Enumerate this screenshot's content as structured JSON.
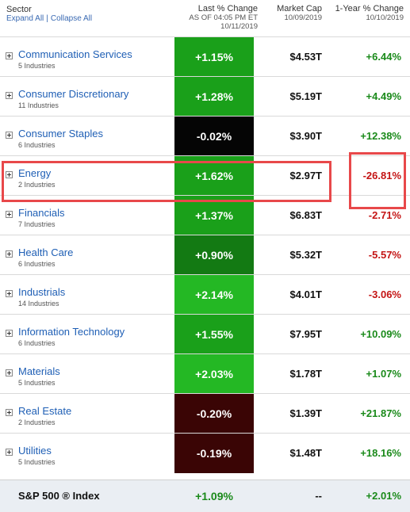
{
  "header": {
    "sector_title": "Sector",
    "expand_all": "Expand All",
    "separator": "|",
    "collapse_all": "Collapse All",
    "last_change_title": "Last % Change",
    "last_change_asof": "AS OF 04:05 PM ET",
    "last_change_date": "10/11/2019",
    "market_cap_title": "Market Cap",
    "market_cap_date": "10/09/2019",
    "year_change_title": "1-Year % Change",
    "year_change_date": "10/10/2019"
  },
  "rows": [
    {
      "name": "Communication Services",
      "industries": "5 Industries",
      "change": "+1.15%",
      "change_color": "#1aa01a",
      "mcap": "$4.53T",
      "year": "+6.44%"
    },
    {
      "name": "Consumer Discretionary",
      "industries": "11 Industries",
      "change": "+1.28%",
      "change_color": "#1aa01a",
      "mcap": "$5.19T",
      "year": "+4.49%"
    },
    {
      "name": "Consumer Staples",
      "industries": "6 Industries",
      "change": "-0.02%",
      "change_color": "#050505",
      "mcap": "$3.90T",
      "year": "+12.38%"
    },
    {
      "name": "Energy",
      "industries": "2 Industries",
      "change": "+1.62%",
      "change_color": "#1aa01a",
      "mcap": "$2.97T",
      "year": "-26.81%"
    },
    {
      "name": "Financials",
      "industries": "7 Industries",
      "change": "+1.37%",
      "change_color": "#1aa01a",
      "mcap": "$6.83T",
      "year": "-2.71%"
    },
    {
      "name": "Health Care",
      "industries": "6 Industries",
      "change": "+0.90%",
      "change_color": "#137a13",
      "mcap": "$5.32T",
      "year": "-5.57%"
    },
    {
      "name": "Industrials",
      "industries": "14 Industries",
      "change": "+2.14%",
      "change_color": "#24b824",
      "mcap": "$4.01T",
      "year": "-3.06%"
    },
    {
      "name": "Information Technology",
      "industries": "6 Industries",
      "change": "+1.55%",
      "change_color": "#1aa01a",
      "mcap": "$7.95T",
      "year": "+10.09%"
    },
    {
      "name": "Materials",
      "industries": "5 Industries",
      "change": "+2.03%",
      "change_color": "#24b824",
      "mcap": "$1.78T",
      "year": "+1.07%"
    },
    {
      "name": "Real Estate",
      "industries": "2 Industries",
      "change": "-0.20%",
      "change_color": "#3a0505",
      "mcap": "$1.39T",
      "year": "+21.87%"
    },
    {
      "name": "Utilities",
      "industries": "5 Industries",
      "change": "-0.19%",
      "change_color": "#3a0505",
      "mcap": "$1.48T",
      "year": "+18.16%"
    }
  ],
  "index": {
    "label": "S&P 500 ® Index",
    "change": "+1.09%",
    "mcap": "--",
    "year": "+2.01%"
  },
  "colors": {
    "link_blue": "#1f5fb5",
    "positive": "#1a8a1a",
    "negative": "#c41414",
    "highlight": "#e8484a",
    "index_bg": "#eaeef3"
  }
}
